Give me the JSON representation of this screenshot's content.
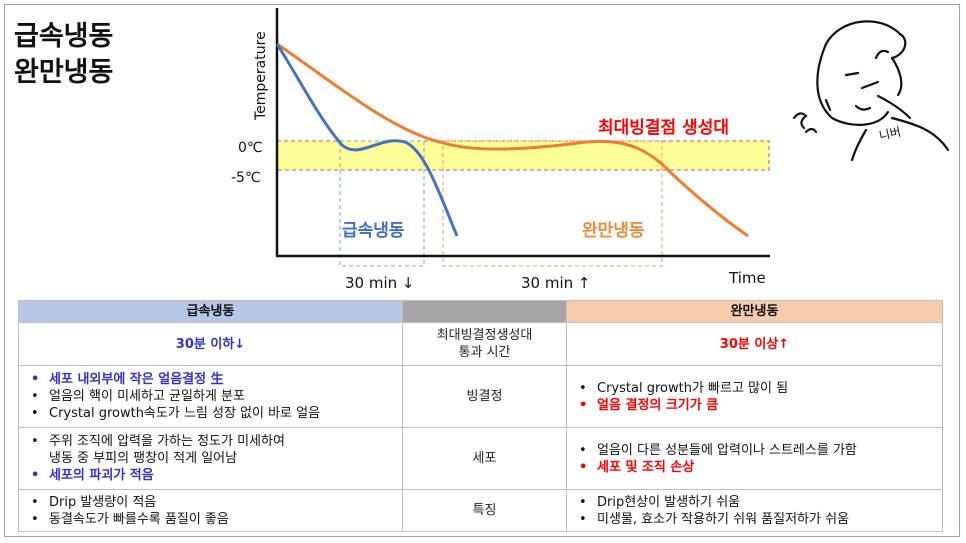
{
  "title": {
    "line1": "급속냉동",
    "line2": "완만냉동"
  },
  "chart": {
    "ylabel": "Temperature",
    "xlabel": "Time",
    "tick_0": "0℃",
    "tick_minus5": "-5℃",
    "zone_label": "최대빙결점 생성대",
    "fast_label": "급속냉동",
    "slow_label": "완만냉동",
    "fast_time": "30 min ↓",
    "slow_time": "30 min ↑"
  },
  "character": {
    "text": "니버"
  },
  "colors": {
    "fast": "#4472c4",
    "slow": "#ed7d31",
    "zone_fill": "#ffff99",
    "zone_border": "#e05555",
    "fast_label": "#3f6ec7",
    "slow_label": "#f08a3c"
  },
  "table": {
    "headers": {
      "fast": "급속냉동",
      "slow": "완만냉동"
    },
    "row_time": {
      "fast": "30분 이하↓",
      "mid": "최대빙결정생성대\n통과 시간",
      "slow": "30분 이상↑"
    },
    "row_ice": {
      "mid": "빙결정",
      "fast": [
        "세포 내외부에 작은 얼음결정 生",
        "얼음의 핵이 미세하고 균일하게 분포",
        "Crystal growth속도가 느림 성장 없이 바로 얼음"
      ],
      "slow": [
        "Crystal growth가 빠르고 많이 됨",
        "얼음 결정의 크기가 큼"
      ]
    },
    "row_cell": {
      "mid": "세포",
      "fast": [
        "주위 조직에 압력을 가하는 정도가 미세하여\n냉동 중 부피의 팽창이 적게 일어남",
        "세포의 파괴가 적음"
      ],
      "slow": [
        "얼음이 다른 성분들에 압력이나 스트레스를 가함",
        "세포 및 조직 손상"
      ]
    },
    "row_feature": {
      "mid": "특징",
      "fast": [
        "Drip 발생량이 적음",
        "동결속도가 빠를수록 품질이 좋음"
      ],
      "slow": [
        "Drip현상이 발생하기 쉬움",
        "미생물, 효소가 작용하기 쉬워 품질저하가 쉬움"
      ]
    }
  }
}
